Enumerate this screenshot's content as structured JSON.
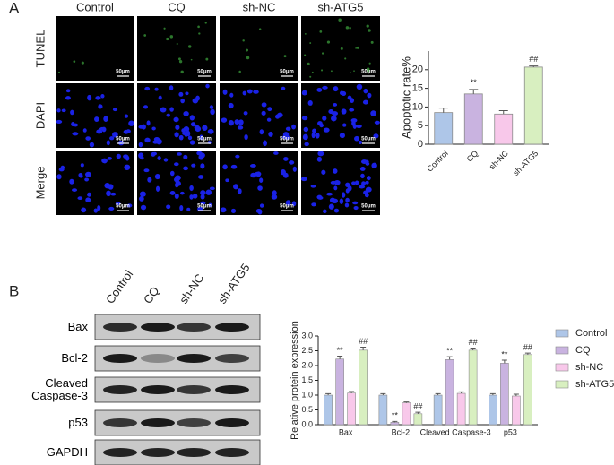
{
  "panel_labels": [
    "A",
    "B"
  ],
  "micrographs": {
    "columns": [
      "Control",
      "CQ",
      "sh-NC",
      "sh-ATG5"
    ],
    "rows": [
      "TUNEL",
      "DAPI",
      "Merge"
    ],
    "scale_bar": "50μm"
  },
  "blot": {
    "lanes": [
      "Control",
      "CQ",
      "sh-NC",
      "sh-ATG5"
    ],
    "proteins": [
      "Bax",
      "Bcl-2",
      "Cleaved Caspase-3",
      "p53",
      "GAPDH"
    ]
  },
  "chart_data": [
    {
      "type": "bar",
      "ylabel": "Apoptotic rate%",
      "categories": [
        "Control",
        "CQ",
        "sh-NC",
        "sh-ATG5"
      ],
      "values": [
        8.5,
        13.5,
        8.1,
        20.7
      ],
      "errors": [
        1.2,
        1.2,
        0.9,
        0.3
      ],
      "colors": [
        "#aec6e8",
        "#c9b3e0",
        "#f8c8ea",
        "#d8efc0"
      ],
      "marks": [
        null,
        "**",
        null,
        "##"
      ],
      "ylim": [
        0,
        25
      ],
      "yticks": [
        0,
        5,
        10,
        15,
        20
      ]
    },
    {
      "type": "grouped_bar",
      "ylabel": "Relative protein expression",
      "categories": [
        "Bax",
        "Bcl-2",
        "Cleaved Caspase-3",
        "p53"
      ],
      "series": [
        {
          "name": "Control",
          "color": "#aec6e8",
          "values": [
            1,
            1,
            1,
            1
          ],
          "errors": [
            0.05,
            0.05,
            0.05,
            0.05
          ],
          "marks": [
            null,
            null,
            null,
            null
          ]
        },
        {
          "name": "CQ",
          "color": "#c9b3e0",
          "values": [
            2.22,
            0.08,
            2.2,
            2.08
          ],
          "errors": [
            0.1,
            0.03,
            0.1,
            0.1
          ],
          "marks": [
            "**",
            "**",
            "**",
            "**"
          ]
        },
        {
          "name": "sh-NC",
          "color": "#f8c8ea",
          "values": [
            1.07,
            0.74,
            1.06,
            0.97
          ],
          "errors": [
            0.05,
            0.03,
            0.05,
            0.06
          ],
          "marks": [
            null,
            null,
            null,
            null
          ]
        },
        {
          "name": "sh-ATG5",
          "color": "#d8efc0",
          "values": [
            2.52,
            0.37,
            2.52,
            2.37
          ],
          "errors": [
            0.1,
            0.05,
            0.07,
            0.05
          ],
          "marks": [
            "##",
            "##",
            "##",
            "##"
          ]
        }
      ],
      "ylim": [
        0,
        3
      ],
      "yticks": [
        {
          "value": 0,
          "label": "0.0"
        },
        0.5,
        {
          "value": 1,
          "label": "1.0"
        },
        1.5,
        {
          "value": 2,
          "label": "2.0"
        },
        2.5,
        {
          "value": 3,
          "label": "3.0"
        }
      ],
      "legend": "right"
    }
  ]
}
